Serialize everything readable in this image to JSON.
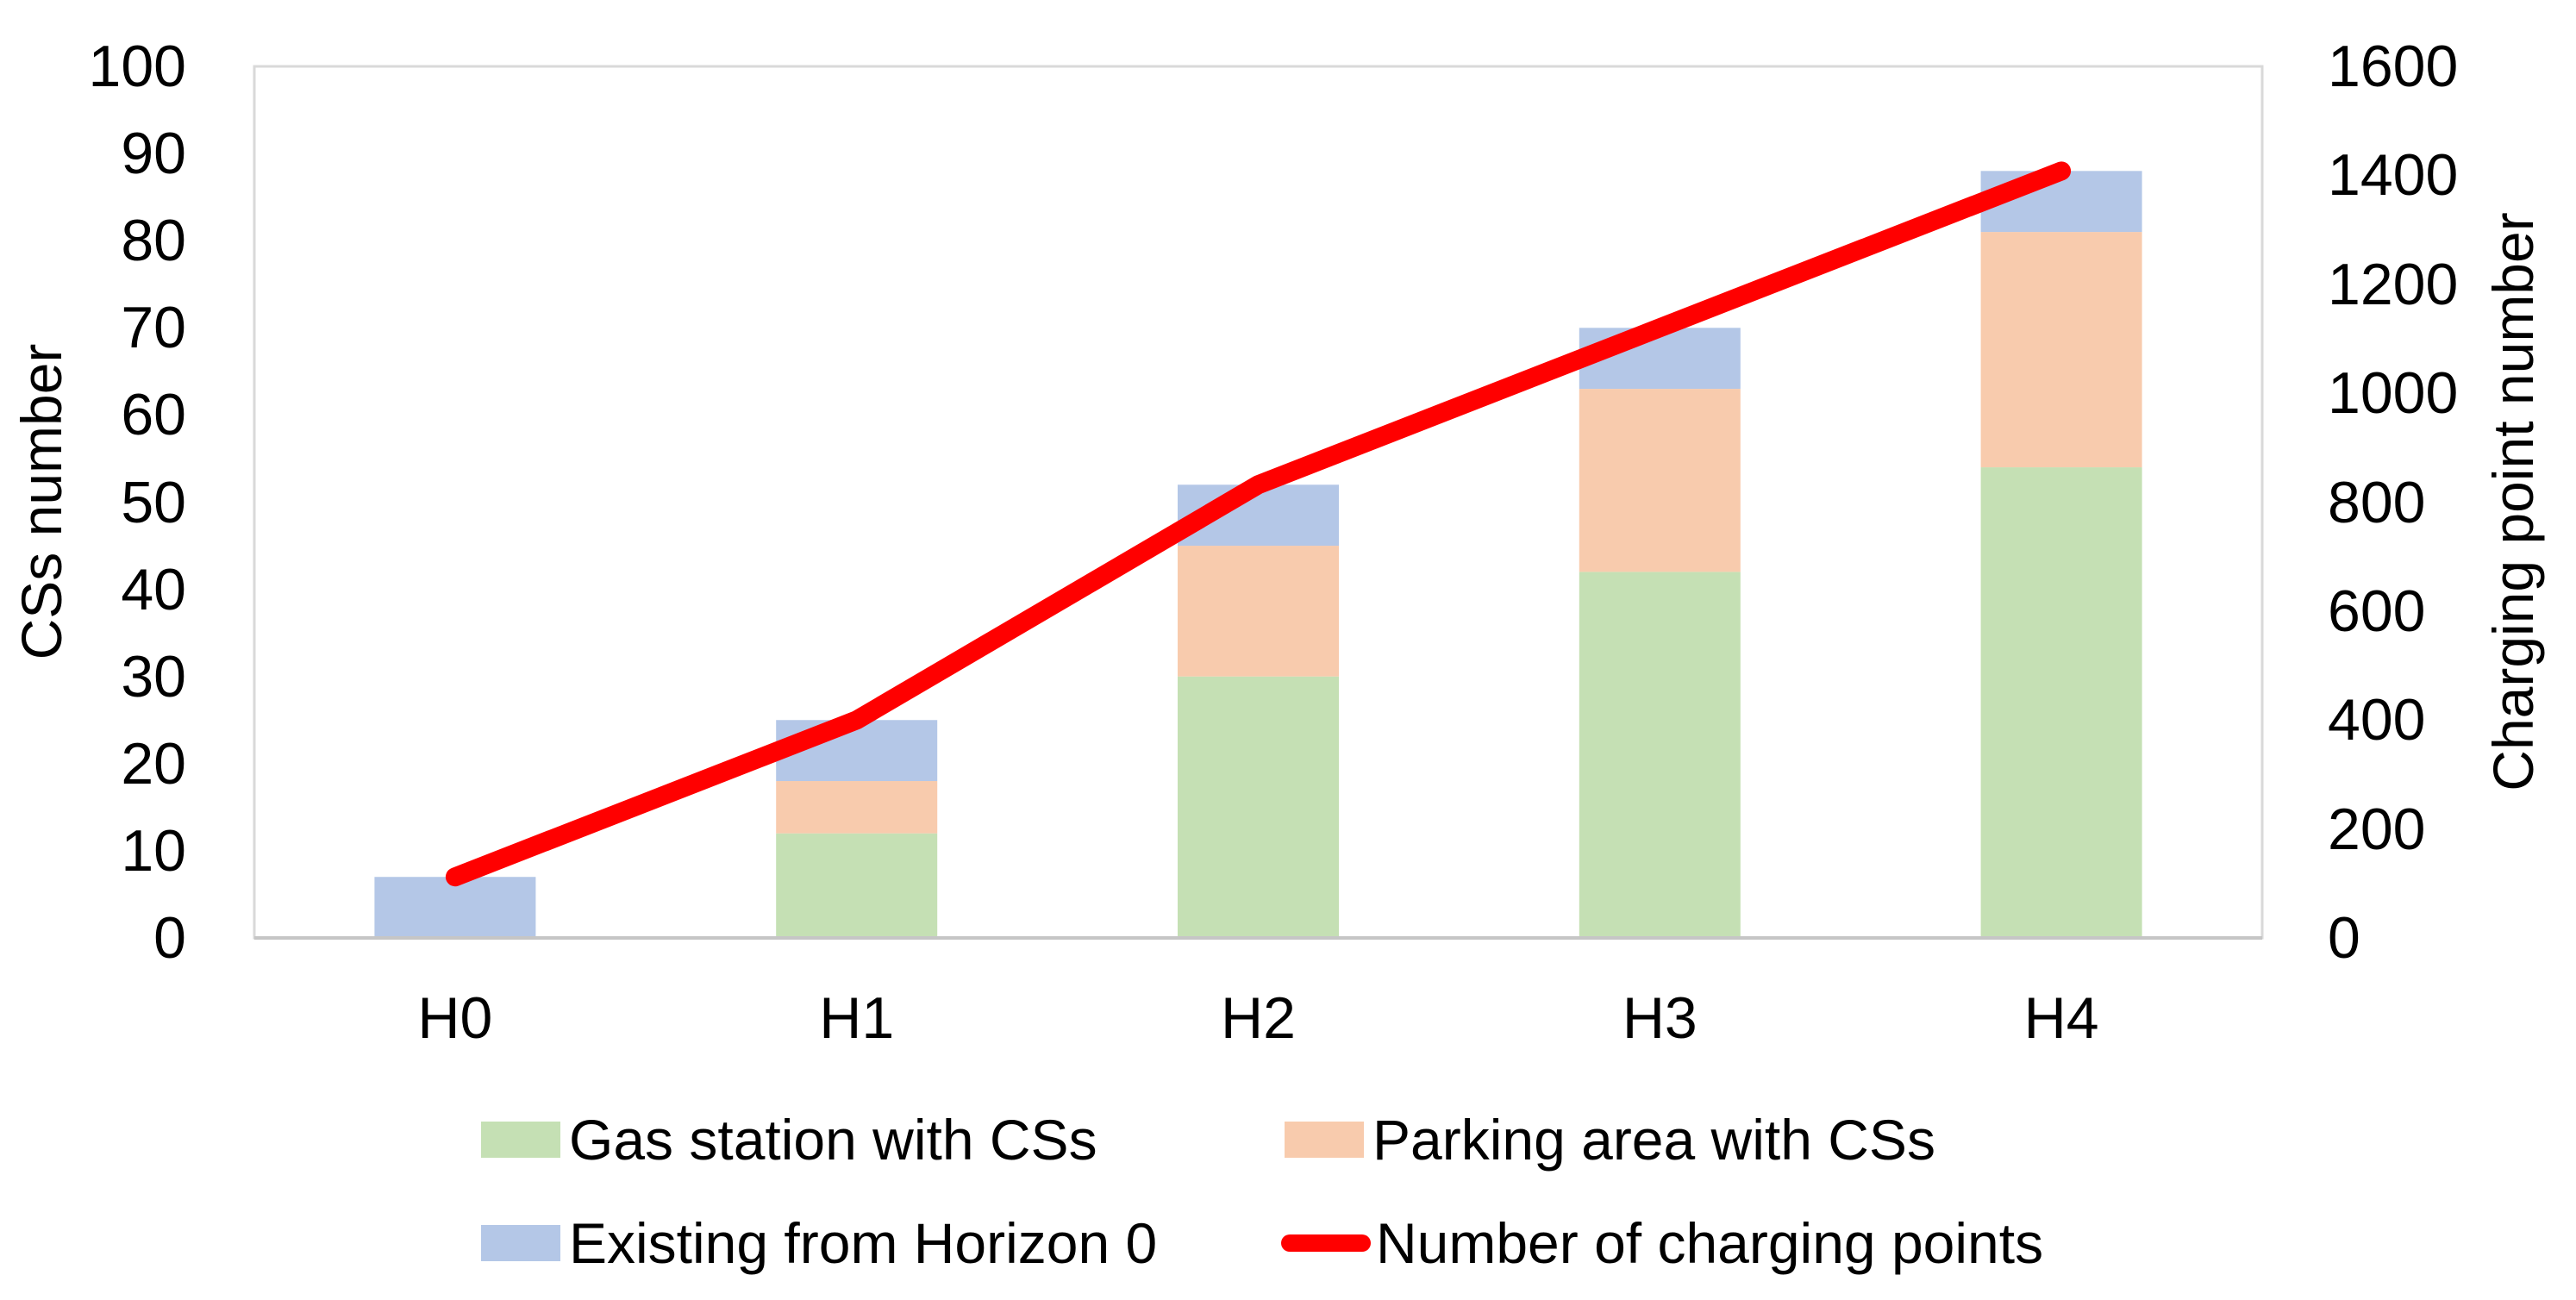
{
  "chart_data": {
    "type": "bar",
    "subtype": "stacked-bar-with-line",
    "categories": [
      "H0",
      "H1",
      "H2",
      "H3",
      "H4"
    ],
    "bar_series": [
      {
        "name": "Gas station with CSs",
        "color": "#c5e0b4",
        "axis": "left",
        "values": [
          0,
          12,
          30,
          42,
          54
        ]
      },
      {
        "name": "Parking area with CSs",
        "color": "#f8cbad",
        "axis": "left",
        "values": [
          0,
          6,
          15,
          21,
          27
        ]
      },
      {
        "name": "Existing from Horizon 0",
        "color": "#b4c7e7",
        "axis": "left",
        "values": [
          7,
          7,
          7,
          7,
          7
        ]
      }
    ],
    "line_series": {
      "name": "Number of charging points",
      "color": "#ff0000",
      "axis": "right",
      "values": [
        112,
        400,
        832,
        1120,
        1408
      ]
    },
    "y_left": {
      "label": "CSs number",
      "min": 0,
      "max": 100,
      "tick_step": 10,
      "ticks": [
        "0",
        "10",
        "20",
        "30",
        "40",
        "50",
        "60",
        "70",
        "80",
        "90",
        "100"
      ]
    },
    "y_right": {
      "label": "Charging point number",
      "min": 0,
      "max": 1600,
      "tick_step": 200,
      "ticks": [
        "0",
        "200",
        "400",
        "600",
        "800",
        "1000",
        "1200",
        "1400",
        "1600"
      ]
    },
    "grid": false,
    "legend_position": "bottom",
    "legend": [
      {
        "label": "Gas station with CSs",
        "marker": "square",
        "color": "#c5e0b4"
      },
      {
        "label": "Parking area with CSs",
        "marker": "square",
        "color": "#f8cbad"
      },
      {
        "label": "Existing from Horizon 0",
        "marker": "square",
        "color": "#b4c7e7"
      },
      {
        "label": "Number of charging points",
        "marker": "line",
        "color": "#ff0000"
      }
    ],
    "plot_border_color": "#d9d9d9",
    "x_axis_line_color": "#c6c6c6"
  }
}
